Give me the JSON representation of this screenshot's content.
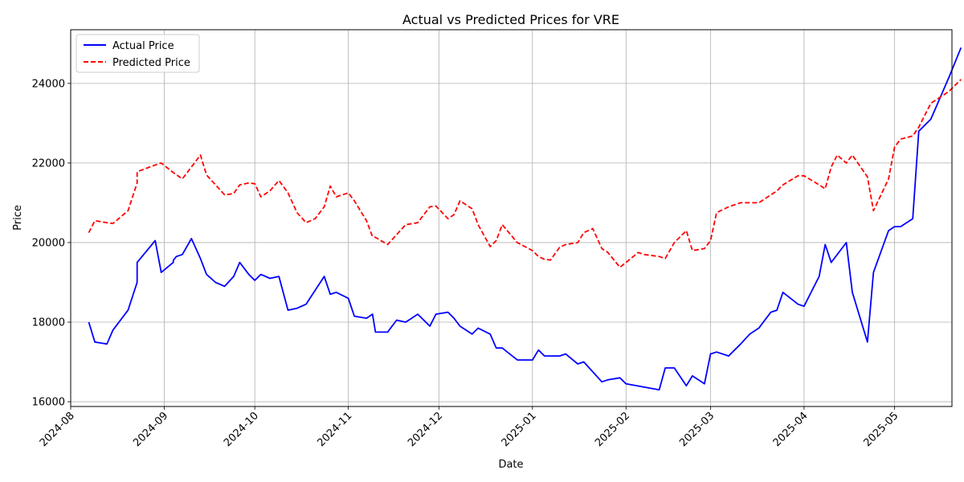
{
  "chart_data": {
    "type": "line",
    "title": "Actual vs Predicted Prices for VRE",
    "xlabel": "Date",
    "ylabel": "Price",
    "grid": true,
    "legend_position": "top-left",
    "xlim": [
      "2024-08-01",
      "2025-05-20"
    ],
    "ylim": [
      15880,
      25350
    ],
    "x_ticks": [
      "2024-08-01",
      "2024-09-01",
      "2024-10-01",
      "2024-11-01",
      "2024-12-01",
      "2025-01-01",
      "2025-02-01",
      "2025-03-01",
      "2025-04-01",
      "2025-05-01"
    ],
    "x_tick_labels": [
      "2024-08",
      "2024-09",
      "2024-10",
      "2024-11",
      "2024-12",
      "2025-01",
      "2025-02",
      "2025-03",
      "2025-04",
      "2025-05"
    ],
    "y_ticks": [
      16000,
      18000,
      20000,
      22000,
      24000
    ],
    "y_tick_labels": [
      "16000",
      "18000",
      "20000",
      "22000",
      "24000"
    ],
    "series": [
      {
        "name": "Actual Price",
        "color": "#0000ff",
        "style": "solid",
        "points": [
          [
            "2024-08-07",
            18000
          ],
          [
            "2024-08-09",
            17500
          ],
          [
            "2024-08-13",
            17450
          ],
          [
            "2024-08-15",
            17800
          ],
          [
            "2024-08-20",
            18300
          ],
          [
            "2024-08-23",
            19000
          ],
          [
            "2024-08-23",
            19500
          ],
          [
            "2024-08-29",
            20050
          ],
          [
            "2024-08-31",
            19250
          ],
          [
            "2024-09-04",
            19500
          ],
          [
            "2024-09-04",
            19550
          ],
          [
            "2024-09-05",
            19650
          ],
          [
            "2024-09-07",
            19700
          ],
          [
            "2024-09-10",
            20100
          ],
          [
            "2024-09-13",
            19600
          ],
          [
            "2024-09-15",
            19200
          ],
          [
            "2024-09-18",
            19000
          ],
          [
            "2024-09-21",
            18900
          ],
          [
            "2024-09-24",
            19150
          ],
          [
            "2024-09-26",
            19500
          ],
          [
            "2024-09-29",
            19200
          ],
          [
            "2024-10-01",
            19050
          ],
          [
            "2024-10-03",
            19200
          ],
          [
            "2024-10-06",
            19100
          ],
          [
            "2024-10-09",
            19150
          ],
          [
            "2024-10-12",
            18300
          ],
          [
            "2024-10-15",
            18350
          ],
          [
            "2024-10-18",
            18450
          ],
          [
            "2024-10-21",
            18800
          ],
          [
            "2024-10-24",
            19150
          ],
          [
            "2024-10-26",
            18700
          ],
          [
            "2024-10-28",
            18750
          ],
          [
            "2024-11-01",
            18600
          ],
          [
            "2024-11-03",
            18150
          ],
          [
            "2024-11-07",
            18100
          ],
          [
            "2024-11-09",
            18200
          ],
          [
            "2024-11-10",
            17750
          ],
          [
            "2024-11-14",
            17750
          ],
          [
            "2024-11-17",
            18050
          ],
          [
            "2024-11-20",
            18000
          ],
          [
            "2024-11-24",
            18200
          ],
          [
            "2024-11-28",
            17900
          ],
          [
            "2024-11-30",
            18200
          ],
          [
            "2024-12-04",
            18250
          ],
          [
            "2024-12-06",
            18100
          ],
          [
            "2024-12-08",
            17900
          ],
          [
            "2024-12-12",
            17700
          ],
          [
            "2024-12-14",
            17850
          ],
          [
            "2024-12-18",
            17700
          ],
          [
            "2024-12-20",
            17350
          ],
          [
            "2024-12-22",
            17350
          ],
          [
            "2024-12-27",
            17050
          ],
          [
            "2025-01-01",
            17050
          ],
          [
            "2025-01-03",
            17300
          ],
          [
            "2025-01-05",
            17150
          ],
          [
            "2025-01-07",
            17150
          ],
          [
            "2025-01-10",
            17150
          ],
          [
            "2025-01-12",
            17200
          ],
          [
            "2025-01-16",
            16950
          ],
          [
            "2025-01-18",
            17000
          ],
          [
            "2025-01-21",
            16750
          ],
          [
            "2025-01-24",
            16500
          ],
          [
            "2025-01-26",
            16550
          ],
          [
            "2025-01-30",
            16600
          ],
          [
            "2025-02-01",
            16450
          ],
          [
            "2025-02-12",
            16300
          ],
          [
            "2025-02-14",
            16850
          ],
          [
            "2025-02-17",
            16850
          ],
          [
            "2025-02-21",
            16400
          ],
          [
            "2025-02-23",
            16650
          ],
          [
            "2025-02-27",
            16450
          ],
          [
            "2025-03-01",
            17200
          ],
          [
            "2025-03-03",
            17250
          ],
          [
            "2025-03-07",
            17150
          ],
          [
            "2025-03-11",
            17450
          ],
          [
            "2025-03-14",
            17700
          ],
          [
            "2025-03-17",
            17850
          ],
          [
            "2025-03-21",
            18250
          ],
          [
            "2025-03-23",
            18300
          ],
          [
            "2025-03-25",
            18750
          ],
          [
            "2025-03-30",
            18450
          ],
          [
            "2025-04-01",
            18400
          ],
          [
            "2025-04-06",
            19150
          ],
          [
            "2025-04-08",
            19950
          ],
          [
            "2025-04-10",
            19500
          ],
          [
            "2025-04-15",
            20000
          ],
          [
            "2025-04-17",
            18750
          ],
          [
            "2025-04-22",
            17500
          ],
          [
            "2025-04-24",
            19250
          ],
          [
            "2025-04-29",
            20300
          ],
          [
            "2025-05-01",
            20400
          ],
          [
            "2025-05-03",
            20400
          ],
          [
            "2025-05-07",
            20600
          ],
          [
            "2025-05-09",
            22800
          ],
          [
            "2025-05-13",
            23100
          ],
          [
            "2025-05-19",
            24150
          ],
          [
            "2025-05-23",
            24900
          ]
        ]
      },
      {
        "name": "Predicted Price",
        "color": "#ff0000",
        "style": "dashed",
        "points": [
          [
            "2024-08-07",
            20250
          ],
          [
            "2024-08-09",
            20550
          ],
          [
            "2024-08-13",
            20500
          ],
          [
            "2024-08-15",
            20480
          ],
          [
            "2024-08-20",
            20800
          ],
          [
            "2024-08-23",
            21500
          ],
          [
            "2024-08-23",
            21780
          ],
          [
            "2024-08-29",
            21950
          ],
          [
            "2024-08-31",
            22000
          ],
          [
            "2024-09-04",
            21760
          ],
          [
            "2024-09-07",
            21600
          ],
          [
            "2024-09-10",
            21900
          ],
          [
            "2024-09-13",
            22200
          ],
          [
            "2024-09-15",
            21700
          ],
          [
            "2024-09-18",
            21450
          ],
          [
            "2024-09-21",
            21200
          ],
          [
            "2024-09-24",
            21230
          ],
          [
            "2024-09-26",
            21450
          ],
          [
            "2024-09-29",
            21500
          ],
          [
            "2024-10-01",
            21480
          ],
          [
            "2024-10-03",
            21150
          ],
          [
            "2024-10-06",
            21300
          ],
          [
            "2024-10-09",
            21560
          ],
          [
            "2024-10-12",
            21250
          ],
          [
            "2024-10-15",
            20750
          ],
          [
            "2024-10-18",
            20500
          ],
          [
            "2024-10-21",
            20600
          ],
          [
            "2024-10-24",
            20900
          ],
          [
            "2024-10-26",
            21420
          ],
          [
            "2024-10-28",
            21150
          ],
          [
            "2024-11-01",
            21250
          ],
          [
            "2024-11-03",
            21050
          ],
          [
            "2024-11-07",
            20550
          ],
          [
            "2024-11-09",
            20150
          ],
          [
            "2024-11-10",
            20130
          ],
          [
            "2024-11-14",
            19950
          ],
          [
            "2024-11-17",
            20200
          ],
          [
            "2024-11-20",
            20450
          ],
          [
            "2024-11-24",
            20500
          ],
          [
            "2024-11-28",
            20900
          ],
          [
            "2024-11-30",
            20920
          ],
          [
            "2024-12-04",
            20600
          ],
          [
            "2024-12-06",
            20700
          ],
          [
            "2024-12-08",
            21050
          ],
          [
            "2024-12-12",
            20850
          ],
          [
            "2024-12-14",
            20450
          ],
          [
            "2024-12-18",
            19900
          ],
          [
            "2024-12-20",
            20050
          ],
          [
            "2024-12-22",
            20450
          ],
          [
            "2024-12-27",
            20000
          ],
          [
            "2025-01-01",
            19800
          ],
          [
            "2025-01-03",
            19650
          ],
          [
            "2025-01-05",
            19580
          ],
          [
            "2025-01-07",
            19560
          ],
          [
            "2025-01-10",
            19880
          ],
          [
            "2025-01-12",
            19950
          ],
          [
            "2025-01-16",
            20000
          ],
          [
            "2025-01-18",
            20250
          ],
          [
            "2025-01-21",
            20350
          ],
          [
            "2025-01-24",
            19850
          ],
          [
            "2025-01-26",
            19750
          ],
          [
            "2025-01-30",
            19380
          ],
          [
            "2025-02-01",
            19500
          ],
          [
            "2025-02-05",
            19750
          ],
          [
            "2025-02-07",
            19700
          ],
          [
            "2025-02-12",
            19650
          ],
          [
            "2025-02-14",
            19600
          ],
          [
            "2025-02-17",
            20000
          ],
          [
            "2025-02-21",
            20300
          ],
          [
            "2025-02-23",
            19800
          ],
          [
            "2025-02-27",
            19850
          ],
          [
            "2025-03-01",
            20050
          ],
          [
            "2025-03-03",
            20750
          ],
          [
            "2025-03-07",
            20900
          ],
          [
            "2025-03-11",
            21000
          ],
          [
            "2025-03-14",
            21000
          ],
          [
            "2025-03-17",
            21000
          ],
          [
            "2025-03-21",
            21200
          ],
          [
            "2025-03-23",
            21300
          ],
          [
            "2025-03-25",
            21450
          ],
          [
            "2025-03-30",
            21680
          ],
          [
            "2025-04-01",
            21680
          ],
          [
            "2025-04-06",
            21450
          ],
          [
            "2025-04-08",
            21350
          ],
          [
            "2025-04-10",
            21900
          ],
          [
            "2025-04-12",
            22200
          ],
          [
            "2025-04-15",
            22000
          ],
          [
            "2025-04-17",
            22200
          ],
          [
            "2025-04-22",
            21650
          ],
          [
            "2025-04-24",
            20800
          ],
          [
            "2025-04-29",
            21600
          ],
          [
            "2025-05-01",
            22400
          ],
          [
            "2025-05-03",
            22600
          ],
          [
            "2025-05-07",
            22680
          ],
          [
            "2025-05-09",
            22900
          ],
          [
            "2025-05-13",
            23500
          ],
          [
            "2025-05-19",
            23800
          ],
          [
            "2025-05-23",
            24100
          ]
        ]
      }
    ]
  }
}
